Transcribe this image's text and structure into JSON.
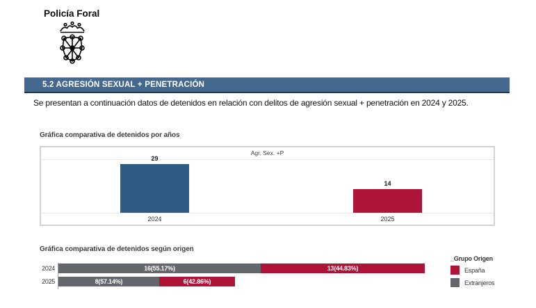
{
  "logo": {
    "title": "Policía Foral"
  },
  "section": {
    "title": "5.2 AGRESIÓN SEXUAL + PENETRACIÓN"
  },
  "intro": {
    "text": "Se presentan a continuación datos de detenidos en relación con delitos de agresión sexual + penetración en 2024 y 2025."
  },
  "colors": {
    "section_header_bg": "#44688E",
    "section_header_border": "#1d3b59",
    "bar_blue": "#2E5A84",
    "bar_red": "#AE1438",
    "bar_gray": "#63666A"
  },
  "chart_data": [
    {
      "type": "bar",
      "title": "Gráfica comparativa de detenidos por años",
      "panel_label": "Agr. Sex. +P",
      "categories": [
        "2024",
        "2025"
      ],
      "values": [
        29,
        14
      ],
      "bar_colors": [
        "#2E5A84",
        "#AE1438"
      ],
      "xlabel": "",
      "ylabel": "",
      "ylim": [
        0,
        29
      ],
      "grid": false,
      "legend_position": "none"
    },
    {
      "type": "bar",
      "orientation": "horizontal-stacked",
      "title": "Gráfica comparativa de detenidos según origen",
      "categories": [
        "2024",
        "2025"
      ],
      "series": [
        {
          "name": "Extranjeros",
          "color": "#63666A",
          "values": [
            16,
            8
          ],
          "labels": [
            "16(55.17%)",
            "8(57.14%)"
          ]
        },
        {
          "name": "España",
          "color": "#AE1438",
          "values": [
            13,
            6
          ],
          "labels": [
            "13(44.83%)",
            "6(42.86%)"
          ]
        }
      ],
      "totals": [
        29,
        14
      ],
      "xlim": [
        0,
        29
      ],
      "grid": false,
      "legend": {
        "title": "_Grupo Origen",
        "entries": [
          {
            "label": "España",
            "color": "#AE1438"
          },
          {
            "label": "Extranjeros",
            "color": "#63666A"
          }
        ]
      }
    }
  ]
}
